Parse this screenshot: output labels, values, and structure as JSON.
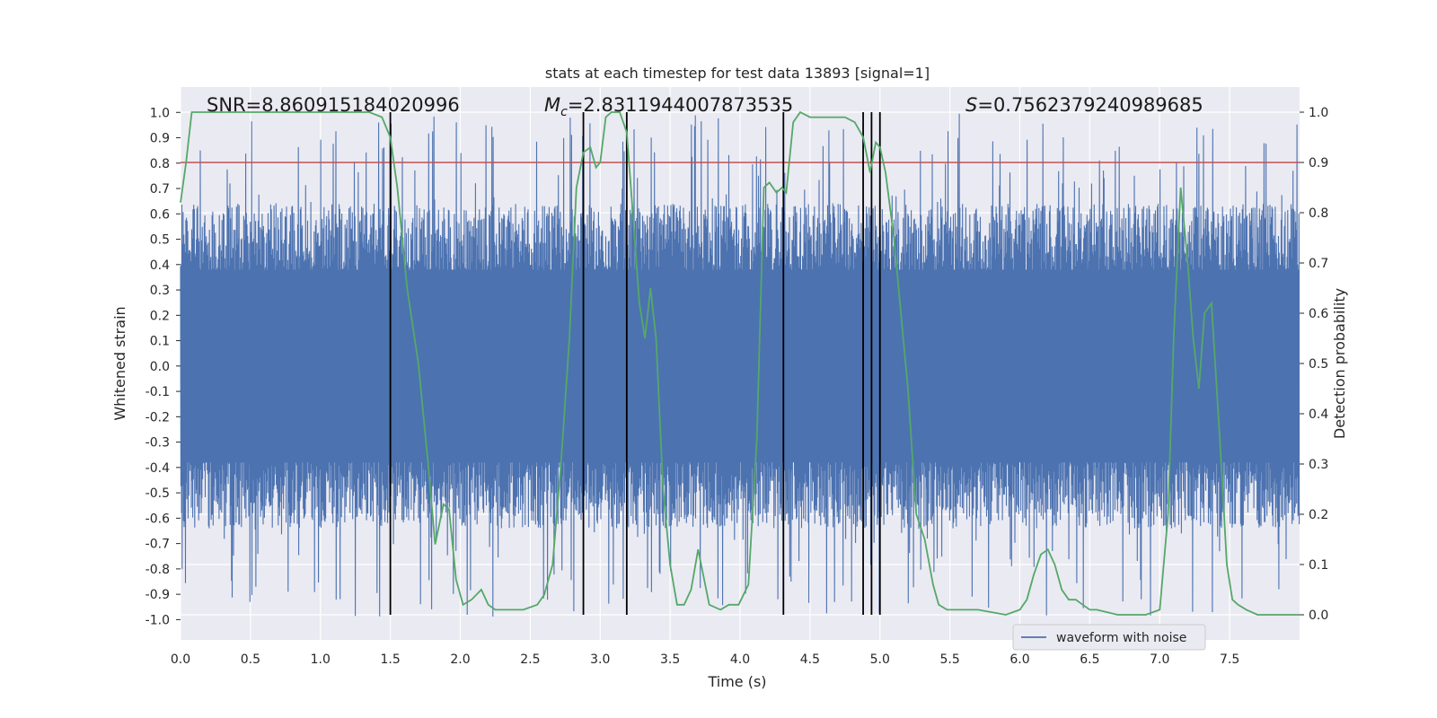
{
  "chart_data": {
    "type": "line",
    "title": "stats at each timestep for test data 13893 [signal=1]",
    "xlabel": "Time (s)",
    "ylabel": "Whitened strain",
    "ylabel_right": "Detection probability",
    "xlim": [
      0.0,
      8.0
    ],
    "ylim": [
      -1.08,
      1.1
    ],
    "ylim_right": [
      -0.05,
      1.05
    ],
    "x_ticks": [
      "0.0",
      "0.5",
      "1.0",
      "1.5",
      "2.0",
      "2.5",
      "3.0",
      "3.5",
      "4.0",
      "4.5",
      "5.0",
      "5.5",
      "6.0",
      "6.5",
      "7.0",
      "7.5"
    ],
    "y_ticks": [
      "1.0",
      "0.9",
      "0.8",
      "0.7",
      "0.6",
      "0.5",
      "0.4",
      "0.3",
      "0.2",
      "0.1",
      "0.0",
      "-0.1",
      "-0.2",
      "-0.3",
      "-0.4",
      "-0.5",
      "-0.6",
      "-0.7",
      "-0.8",
      "-0.9",
      "-1.0"
    ],
    "y_ticks_right": [
      "1.0",
      "0.9",
      "0.8",
      "0.7",
      "0.6",
      "0.5",
      "0.4",
      "0.3",
      "0.2",
      "0.1",
      "0.0"
    ],
    "grid": true,
    "legend": {
      "label": "waveform with noise",
      "placement": "lower-right"
    },
    "annotations": {
      "snr": "SNR=8.860915184020996",
      "mc_symbol": "M",
      "mc_subscript": "c",
      "mc_value": "=2.8311944007873535",
      "s_symbol": "S",
      "s_value": "=0.7562379240989685"
    },
    "threshold": {
      "y_right": 0.9,
      "color": "#c44e52"
    },
    "vertical_lines_x": [
      1.5,
      2.88,
      3.19,
      4.31,
      4.88,
      4.94,
      5.0
    ],
    "colors": {
      "waveform": "#4c72b0",
      "probability": "#55a868",
      "background": "#eaeaf2",
      "vlines": "#000000"
    },
    "series": [
      {
        "name": "detection probability",
        "axis": "right",
        "x": [
          0.0,
          0.04,
          0.08,
          0.12,
          0.2,
          0.3,
          0.5,
          0.8,
          1.0,
          1.2,
          1.35,
          1.44,
          1.5,
          1.55,
          1.62,
          1.7,
          1.77,
          1.82,
          1.88,
          1.92,
          1.97,
          2.02,
          2.08,
          2.15,
          2.2,
          2.25,
          2.3,
          2.36,
          2.45,
          2.55,
          2.6,
          2.66,
          2.72,
          2.78,
          2.83,
          2.88,
          2.93,
          2.97,
          3.0,
          3.04,
          3.08,
          3.14,
          3.19,
          3.22,
          3.28,
          3.32,
          3.36,
          3.4,
          3.45,
          3.5,
          3.55,
          3.6,
          3.65,
          3.7,
          3.78,
          3.86,
          3.92,
          3.99,
          4.06,
          4.12,
          4.17,
          4.21,
          4.26,
          4.3,
          4.33,
          4.38,
          4.43,
          4.5,
          4.57,
          4.65,
          4.75,
          4.82,
          4.88,
          4.93,
          4.97,
          5.0,
          5.04,
          5.1,
          5.15,
          5.2,
          5.26,
          5.32,
          5.38,
          5.42,
          5.48,
          5.56,
          5.7,
          5.9,
          6.0,
          6.05,
          6.1,
          6.15,
          6.2,
          6.25,
          6.3,
          6.35,
          6.4,
          6.45,
          6.5,
          6.55,
          6.7,
          6.9,
          7.0,
          7.06,
          7.1,
          7.15,
          7.2,
          7.24,
          7.28,
          7.32,
          7.37,
          7.43,
          7.48,
          7.52,
          7.56,
          7.62,
          7.7,
          7.8,
          8.0
        ],
        "values": [
          0.82,
          0.9,
          1.0,
          1.0,
          1.0,
          1.0,
          1.0,
          1.0,
          1.0,
          1.0,
          1.0,
          0.99,
          0.95,
          0.85,
          0.65,
          0.5,
          0.3,
          0.14,
          0.22,
          0.21,
          0.07,
          0.02,
          0.03,
          0.05,
          0.02,
          0.01,
          0.01,
          0.01,
          0.01,
          0.02,
          0.04,
          0.1,
          0.3,
          0.55,
          0.85,
          0.92,
          0.93,
          0.89,
          0.9,
          0.99,
          1.0,
          1.0,
          0.96,
          0.85,
          0.62,
          0.55,
          0.65,
          0.55,
          0.25,
          0.1,
          0.02,
          0.02,
          0.05,
          0.13,
          0.02,
          0.01,
          0.02,
          0.02,
          0.06,
          0.35,
          0.85,
          0.86,
          0.84,
          0.85,
          0.84,
          0.98,
          1.0,
          0.99,
          0.99,
          0.99,
          0.99,
          0.98,
          0.95,
          0.88,
          0.94,
          0.93,
          0.88,
          0.75,
          0.6,
          0.45,
          0.2,
          0.15,
          0.06,
          0.02,
          0.01,
          0.01,
          0.01,
          0.0,
          0.01,
          0.03,
          0.08,
          0.12,
          0.13,
          0.1,
          0.05,
          0.03,
          0.03,
          0.02,
          0.01,
          0.01,
          0.0,
          0.0,
          0.01,
          0.2,
          0.55,
          0.85,
          0.7,
          0.55,
          0.45,
          0.6,
          0.62,
          0.35,
          0.1,
          0.03,
          0.02,
          0.01,
          0.0,
          0.0,
          0.0
        ]
      }
    ],
    "waveform_note": "dense noisy strain trace spanning roughly -1.0 to 1.0"
  }
}
